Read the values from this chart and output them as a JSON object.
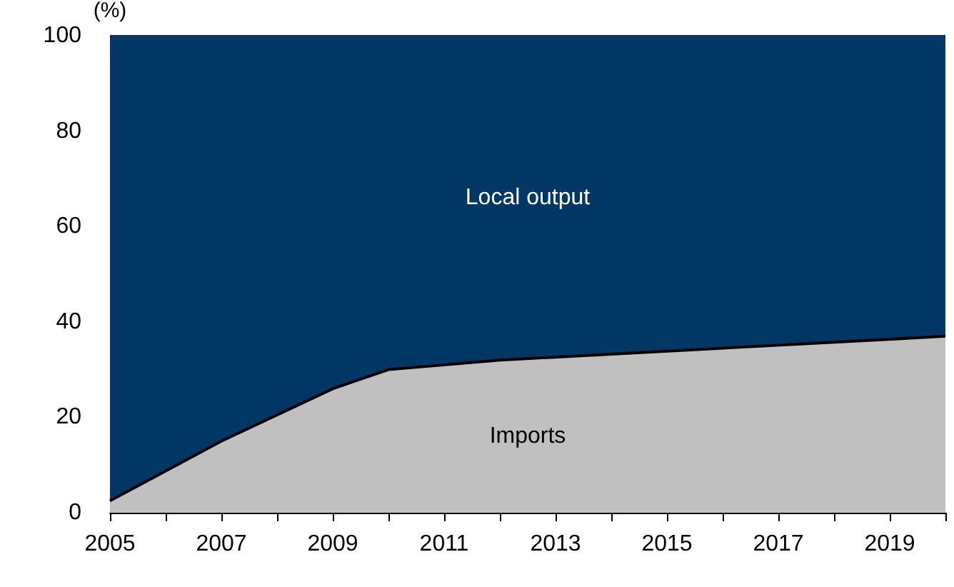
{
  "chart_data": {
    "type": "area",
    "stacked": true,
    "ylabel": "(%)",
    "x": [
      2005,
      2007,
      2009,
      2010,
      2012,
      2020
    ],
    "series": [
      {
        "name": "Imports",
        "color": "#c0c0c0",
        "values": [
          2.5,
          15,
          26,
          30,
          32,
          37
        ]
      },
      {
        "name": "Local output",
        "color": "#003764",
        "values": [
          97.5,
          85,
          74,
          70,
          68,
          63
        ]
      }
    ],
    "xlim": [
      2005,
      2020
    ],
    "xticks": [
      2005,
      {
        "value": 2006,
        "label": null
      },
      2007,
      {
        "value": 2008,
        "label": null
      },
      2009,
      {
        "value": 2010,
        "label": null
      },
      2011,
      {
        "value": 2012,
        "label": null
      },
      2013,
      {
        "value": 2014,
        "label": null
      },
      2015,
      {
        "value": 2016,
        "label": null
      },
      2017,
      {
        "value": 2018,
        "label": null
      },
      2019,
      {
        "value": 2020,
        "label": null
      }
    ],
    "ylim": [
      0,
      100
    ],
    "yticks": [
      0,
      20,
      40,
      60,
      80,
      100
    ],
    "grid": false,
    "legend": false
  }
}
